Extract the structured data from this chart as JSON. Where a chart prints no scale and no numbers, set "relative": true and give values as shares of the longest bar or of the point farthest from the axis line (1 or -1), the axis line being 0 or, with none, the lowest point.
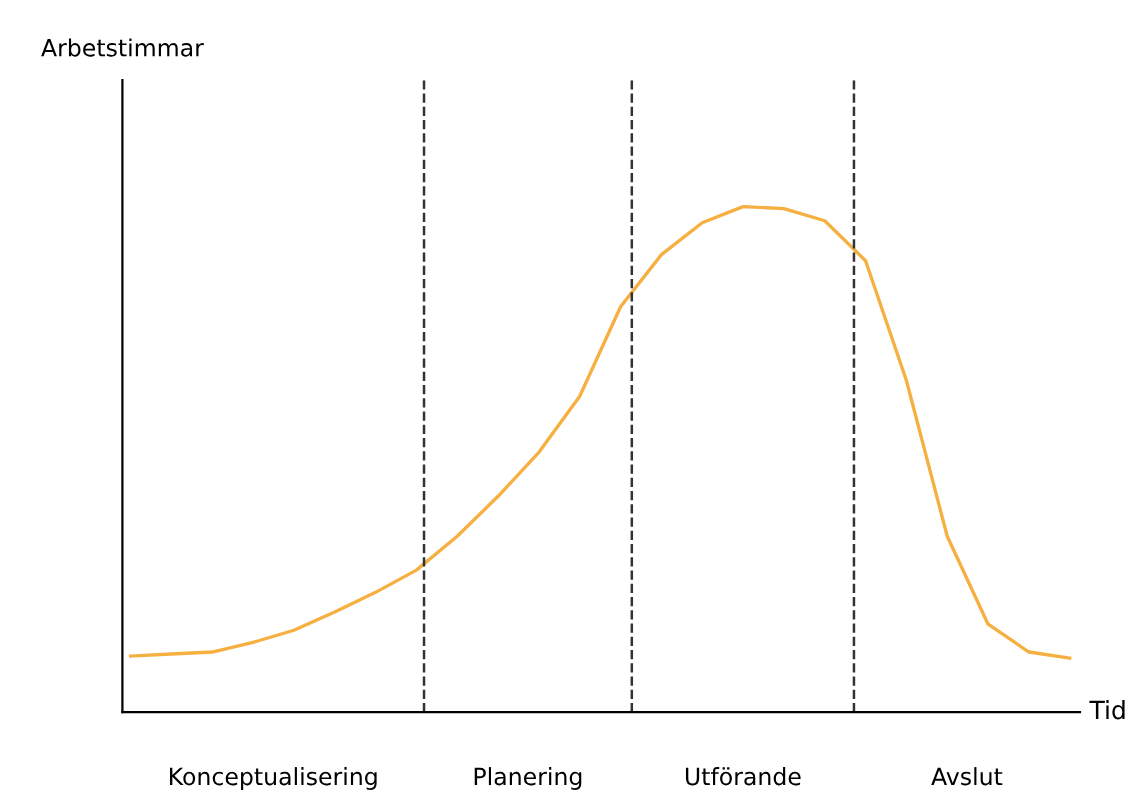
{
  "chart_data": {
    "type": "line",
    "relative": true,
    "xlabel": "Tid",
    "categories": [
      null,
      null,
      null,
      null,
      null,
      null,
      null,
      null,
      null,
      null,
      null,
      null,
      null,
      null,
      null,
      null,
      null,
      null,
      null,
      null,
      null,
      null,
      null,
      null
    ],
    "marker": "none",
    "line_style": "solid",
    "series": [
      {
        "color": "#f5b041",
        "values": [
          0.111,
          0.115,
          0.119,
          0.138,
          0.162,
          0.198,
          0.237,
          0.281,
          0.348,
          0.427,
          0.514,
          0.625,
          0.802,
          0.905,
          0.968,
          1.0,
          0.996,
          0.972,
          0.893,
          0.656,
          0.348,
          0.174,
          0.119,
          0.107
        ]
      }
    ],
    "annotations": [
      "Arbetstimmar",
      "Konceptualisering",
      "Planering",
      "Utförande",
      "Avslut"
    ]
  }
}
